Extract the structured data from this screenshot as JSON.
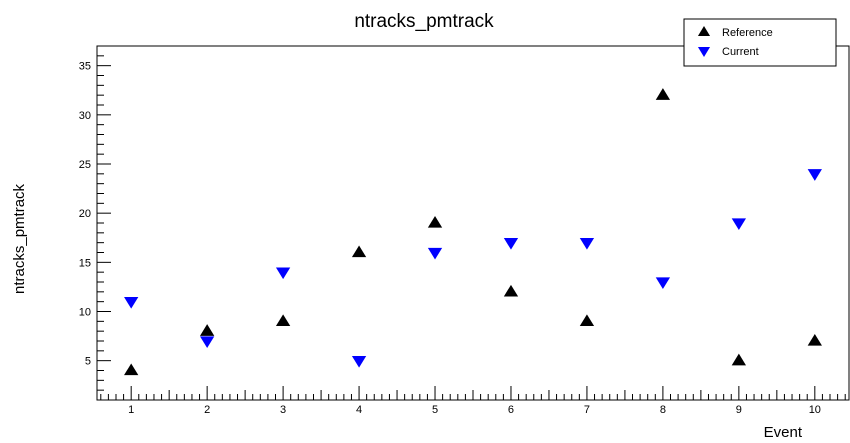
{
  "chart_data": {
    "type": "scatter",
    "title": "ntracks_pmtrack",
    "xlabel": "Event",
    "ylabel": "ntracks_pmtrack",
    "xlim": [
      0.55,
      10.45
    ],
    "ylim": [
      1,
      37
    ],
    "x_ticks": [
      1,
      2,
      3,
      4,
      5,
      6,
      7,
      8,
      9,
      10
    ],
    "y_ticks": [
      5,
      10,
      15,
      20,
      25,
      30,
      35
    ],
    "grid": false,
    "legend_position": "top-right",
    "series": [
      {
        "name": "Reference",
        "marker": "triangle-up",
        "color": "#000000",
        "x": [
          1,
          2,
          3,
          4,
          5,
          6,
          7,
          8,
          9,
          10
        ],
        "y": [
          4,
          8,
          9,
          16,
          19,
          12,
          9,
          32,
          5,
          7
        ]
      },
      {
        "name": "Current",
        "marker": "triangle-down",
        "color": "#0000ff",
        "x": [
          1,
          2,
          3,
          4,
          5,
          6,
          7,
          8,
          9,
          10
        ],
        "y": [
          11,
          7,
          14,
          5,
          16,
          17,
          17,
          13,
          19,
          24
        ]
      }
    ]
  }
}
